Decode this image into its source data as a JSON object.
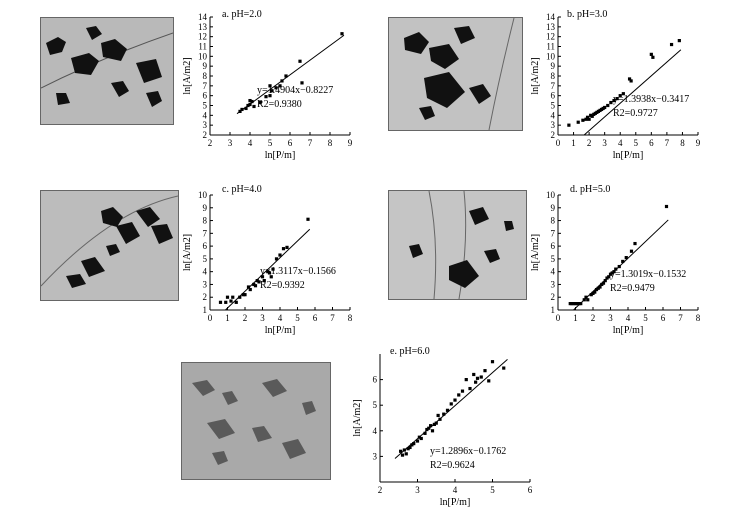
{
  "chart_data": [
    {
      "type": "scatter",
      "title": "a. pH=2.0",
      "xlabel": "ln[P/m]",
      "ylabel": "ln[A/m2]",
      "xlim": [
        2,
        9
      ],
      "ylim": [
        2,
        14
      ],
      "xticks": [
        "2",
        "3",
        "4",
        "5",
        "6",
        "7",
        "8",
        "9"
      ],
      "yticks": [
        "2",
        "3",
        "4",
        "5",
        "6",
        "7",
        "8",
        "9",
        "10",
        "11",
        "12",
        "13",
        "14"
      ],
      "fit": {
        "slope": 1.4904,
        "intercept": -0.8227
      },
      "equation": "y=1.4904x−0.8227",
      "r2_label": "R2=0.9380",
      "points": [
        [
          3.5,
          4.4
        ],
        [
          3.6,
          4.6
        ],
        [
          3.8,
          4.7
        ],
        [
          3.9,
          5.0
        ],
        [
          4.0,
          5.1
        ],
        [
          4.1,
          5.4
        ],
        [
          4.0,
          5.5
        ],
        [
          4.2,
          4.9
        ],
        [
          4.5,
          5.3
        ],
        [
          4.8,
          5.9
        ],
        [
          5.0,
          6.0
        ],
        [
          5.1,
          6.5
        ],
        [
          5.3,
          6.8
        ],
        [
          5.5,
          7.0
        ],
        [
          5.6,
          7.5
        ],
        [
          5.8,
          8.0
        ],
        [
          5.0,
          7.0
        ],
        [
          6.5,
          9.5
        ],
        [
          6.6,
          7.3
        ],
        [
          8.6,
          12.3
        ]
      ]
    },
    {
      "type": "scatter",
      "title": "b. pH=3.0",
      "xlabel": "ln[P/m]",
      "ylabel": "ln[A/m2]",
      "xlim": [
        0,
        9
      ],
      "ylim": [
        2,
        14
      ],
      "xticks": [
        "0",
        "1",
        "2",
        "3",
        "4",
        "5",
        "6",
        "7",
        "8",
        "9"
      ],
      "yticks": [
        "2",
        "3",
        "4",
        "5",
        "6",
        "7",
        "8",
        "9",
        "10",
        "11",
        "12",
        "13",
        "14"
      ],
      "fit": {
        "slope": 1.3938,
        "intercept": -0.3417
      },
      "equation": "y=1.3938x−0.3417",
      "r2_label": "R2=0.9727",
      "points": [
        [
          0.7,
          3.0
        ],
        [
          1.3,
          3.3
        ],
        [
          1.6,
          3.5
        ],
        [
          1.8,
          3.6
        ],
        [
          1.9,
          3.8
        ],
        [
          2.0,
          3.6
        ],
        [
          2.1,
          4.0
        ],
        [
          2.2,
          3.9
        ],
        [
          2.3,
          4.1
        ],
        [
          2.4,
          4.2
        ],
        [
          2.5,
          4.3
        ],
        [
          2.6,
          4.4
        ],
        [
          2.7,
          4.5
        ],
        [
          2.8,
          4.6
        ],
        [
          2.9,
          4.7
        ],
        [
          3.0,
          4.8
        ],
        [
          3.2,
          5.0
        ],
        [
          3.4,
          5.3
        ],
        [
          3.6,
          5.5
        ],
        [
          3.8,
          5.7
        ],
        [
          4.0,
          6.0
        ],
        [
          4.2,
          6.2
        ],
        [
          4.6,
          7.7
        ],
        [
          4.7,
          7.5
        ],
        [
          6.0,
          10.2
        ],
        [
          6.1,
          9.9
        ],
        [
          7.3,
          11.2
        ],
        [
          7.8,
          11.6
        ]
      ]
    },
    {
      "type": "scatter",
      "title": "c. pH=4.0",
      "xlabel": "ln[P/m]",
      "ylabel": "ln[A/m2]",
      "xlim": [
        0,
        8
      ],
      "ylim": [
        1,
        10
      ],
      "xticks": [
        "0",
        "1",
        "2",
        "3",
        "4",
        "5",
        "6",
        "7",
        "8"
      ],
      "yticks": [
        "1",
        "2",
        "3",
        "4",
        "5",
        "6",
        "7",
        "8",
        "9",
        "10"
      ],
      "fit": {
        "slope": 1.3117,
        "intercept": -0.1566
      },
      "equation": "y=1.3117x−0.1566",
      "r2_label": "R2=0.9392",
      "points": [
        [
          0.6,
          1.6
        ],
        [
          0.9,
          1.6
        ],
        [
          1.0,
          2.0
        ],
        [
          1.2,
          1.7
        ],
        [
          1.3,
          2.0
        ],
        [
          1.5,
          1.6
        ],
        [
          1.7,
          2.0
        ],
        [
          1.9,
          2.2
        ],
        [
          2.0,
          2.2
        ],
        [
          2.2,
          2.8
        ],
        [
          2.3,
          2.6
        ],
        [
          2.5,
          3.0
        ],
        [
          2.6,
          2.9
        ],
        [
          2.7,
          3.3
        ],
        [
          2.8,
          3.2
        ],
        [
          3.0,
          3.6
        ],
        [
          3.1,
          3.3
        ],
        [
          3.3,
          4.0
        ],
        [
          3.4,
          3.9
        ],
        [
          3.5,
          3.6
        ],
        [
          3.6,
          4.2
        ],
        [
          3.8,
          5.0
        ],
        [
          4.0,
          5.3
        ],
        [
          4.2,
          5.8
        ],
        [
          4.4,
          5.9
        ],
        [
          5.6,
          8.1
        ]
      ]
    },
    {
      "type": "scatter",
      "title": "d. pH=5.0",
      "xlabel": "ln[P/m]",
      "ylabel": "ln[A/m2]",
      "xlim": [
        0,
        8
      ],
      "ylim": [
        1,
        10
      ],
      "xticks": [
        "0",
        "1",
        "2",
        "3",
        "4",
        "5",
        "6",
        "7",
        "8"
      ],
      "yticks": [
        "1",
        "2",
        "3",
        "4",
        "5",
        "6",
        "7",
        "8",
        "9",
        "10"
      ],
      "fit": {
        "slope": 1.3019,
        "intercept": -0.1532
      },
      "equation": "y=1.3019x−0.1532",
      "r2_label": "R2=0.9479",
      "points": [
        [
          0.7,
          1.5
        ],
        [
          0.8,
          1.5
        ],
        [
          0.9,
          1.5
        ],
        [
          1.0,
          1.5
        ],
        [
          1.1,
          1.5
        ],
        [
          1.2,
          1.5
        ],
        [
          1.3,
          1.5
        ],
        [
          1.5,
          1.8
        ],
        [
          1.6,
          2.0
        ],
        [
          1.7,
          1.8
        ],
        [
          1.9,
          2.2
        ],
        [
          2.0,
          2.3
        ],
        [
          2.1,
          2.4
        ],
        [
          2.2,
          2.6
        ],
        [
          2.3,
          2.7
        ],
        [
          2.4,
          2.8
        ],
        [
          2.5,
          3.0
        ],
        [
          2.6,
          3.1
        ],
        [
          2.7,
          3.3
        ],
        [
          2.8,
          3.5
        ],
        [
          2.9,
          3.6
        ],
        [
          3.0,
          3.8
        ],
        [
          3.1,
          3.9
        ],
        [
          3.2,
          4.0
        ],
        [
          3.3,
          4.2
        ],
        [
          3.5,
          4.4
        ],
        [
          3.7,
          4.8
        ],
        [
          3.9,
          5.1
        ],
        [
          4.2,
          5.6
        ],
        [
          4.4,
          6.2
        ],
        [
          6.2,
          9.1
        ]
      ]
    },
    {
      "type": "scatter",
      "title": "e. pH=6.0",
      "xlabel": "ln[P/m]",
      "ylabel": "ln[A/m2]",
      "xlim": [
        2,
        6
      ],
      "ylim": [
        2,
        7
      ],
      "xticks": [
        "2",
        "3",
        "4",
        "5",
        "6"
      ],
      "yticks": [
        "3",
        "4",
        "5",
        "6"
      ],
      "fit": {
        "slope": 1.2896,
        "intercept": -0.1762
      },
      "equation": "y=1.2896x−0.1762",
      "r2_label": "R2=0.9624",
      "points": [
        [
          2.55,
          3.2
        ],
        [
          2.6,
          3.05
        ],
        [
          2.65,
          3.25
        ],
        [
          2.7,
          3.1
        ],
        [
          2.75,
          3.3
        ],
        [
          2.8,
          3.35
        ],
        [
          2.85,
          3.45
        ],
        [
          2.9,
          3.5
        ],
        [
          3.0,
          3.6
        ],
        [
          3.05,
          3.75
        ],
        [
          3.1,
          3.7
        ],
        [
          3.2,
          3.9
        ],
        [
          3.25,
          4.05
        ],
        [
          3.3,
          4.1
        ],
        [
          3.35,
          4.2
        ],
        [
          3.4,
          4.0
        ],
        [
          3.45,
          4.25
        ],
        [
          3.5,
          4.3
        ],
        [
          3.55,
          4.6
        ],
        [
          3.6,
          4.45
        ],
        [
          3.7,
          4.65
        ],
        [
          3.8,
          4.8
        ],
        [
          3.9,
          5.05
        ],
        [
          4.0,
          5.2
        ],
        [
          4.1,
          5.4
        ],
        [
          4.2,
          5.55
        ],
        [
          4.3,
          6.0
        ],
        [
          4.4,
          5.65
        ],
        [
          4.5,
          6.2
        ],
        [
          4.55,
          5.9
        ],
        [
          4.6,
          6.05
        ],
        [
          4.7,
          6.1
        ],
        [
          4.8,
          6.35
        ],
        [
          4.9,
          5.95
        ],
        [
          5.0,
          6.7
        ],
        [
          5.3,
          6.45
        ]
      ]
    }
  ]
}
